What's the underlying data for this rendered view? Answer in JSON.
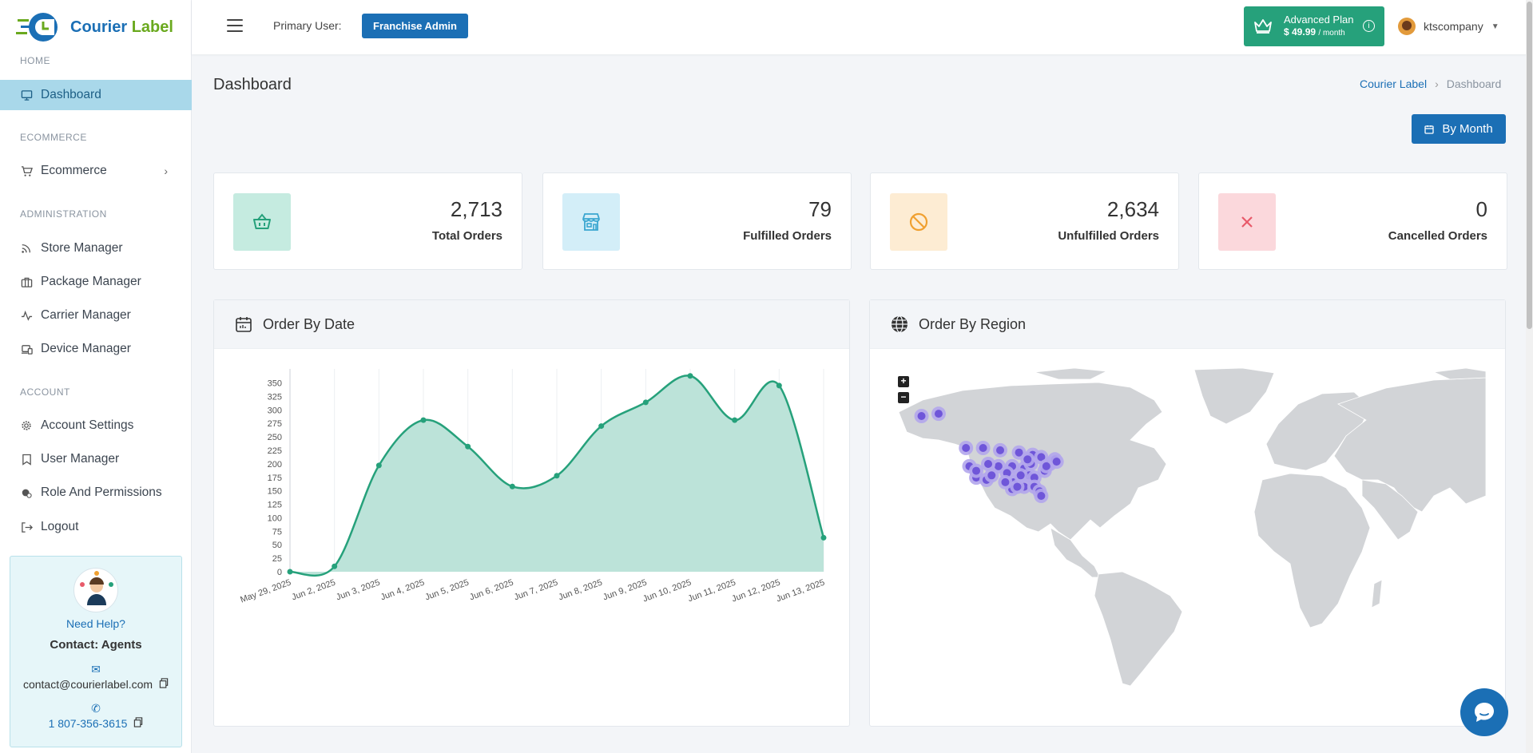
{
  "brand": {
    "name_part1": "Courier",
    "name_part2": "Label"
  },
  "sidebar": {
    "sections": [
      {
        "label": "HOME"
      },
      {
        "label": "ECOMMERCE"
      },
      {
        "label": "ADMINISTRATION"
      },
      {
        "label": "ACCOUNT"
      }
    ],
    "items": [
      {
        "label": "Dashboard",
        "icon": "monitor-icon",
        "active": true
      },
      {
        "label": "Ecommerce",
        "icon": "cart-icon"
      },
      {
        "label": "Store Manager",
        "icon": "rss-icon"
      },
      {
        "label": "Package Manager",
        "icon": "briefcase-icon"
      },
      {
        "label": "Carrier Manager",
        "icon": "activity-icon"
      },
      {
        "label": "Device Manager",
        "icon": "devices-icon"
      },
      {
        "label": "Account Settings",
        "icon": "gear-icon"
      },
      {
        "label": "User Manager",
        "icon": "bookmark-icon"
      },
      {
        "label": "Role And Permissions",
        "icon": "shield-icon"
      },
      {
        "label": "Logout",
        "icon": "logout-icon"
      }
    ],
    "help": {
      "title": "Need Help?",
      "contact": "Contact: Agents",
      "email": "contact@courierlabel.com",
      "phone": "1 807-356-3615"
    }
  },
  "topbar": {
    "primary_user_label": "Primary User:",
    "primary_user_role": "Franchise Admin",
    "plan_name": "Advanced Plan",
    "plan_price": "$ 49.99",
    "plan_period": "/ month",
    "username": "ktscompany"
  },
  "page": {
    "title": "Dashboard",
    "breadcrumb": [
      "Courier Label",
      "Dashboard"
    ],
    "period_button": "By Month"
  },
  "stats": [
    {
      "value": "2,713",
      "label": "Total Orders",
      "icon": "basket-icon",
      "color": "#26a17b",
      "bg": "#c5ebe0"
    },
    {
      "value": "79",
      "label": "Fulfilled Orders",
      "icon": "store-icon",
      "color": "#3aa6d0",
      "bg": "#d3eef8"
    },
    {
      "value": "2,634",
      "label": "Unfulfilled Orders",
      "icon": "ban-icon",
      "color": "#f0a030",
      "bg": "#fdecd3"
    },
    {
      "value": "0",
      "label": "Cancelled Orders",
      "icon": "x-icon",
      "color": "#e85a6a",
      "bg": "#fbd8dc"
    }
  ],
  "panels": {
    "order_by_date": "Order By Date",
    "order_by_region": "Order By Region"
  },
  "chart_data": {
    "type": "area",
    "x": [
      "May 29, 2025",
      "Jun 2, 2025",
      "Jun 3, 2025",
      "Jun 4, 2025",
      "Jun 5, 2025",
      "Jun 6, 2025",
      "Jun 7, 2025",
      "Jun 8, 2025",
      "Jun 9, 2025",
      "Jun 10, 2025",
      "Jun 11, 2025",
      "Jun 12, 2025",
      "Jun 13, 2025"
    ],
    "series": [
      {
        "values": [
          0,
          10,
          197,
          281,
          232,
          158,
          178,
          270,
          314,
          363,
          281,
          345,
          63
        ]
      }
    ],
    "yticks": [
      0,
      25,
      50,
      75,
      100,
      125,
      150,
      175,
      200,
      225,
      250,
      275,
      300,
      325,
      350
    ],
    "ylim": [
      0,
      370
    ],
    "grid": true,
    "colors": {
      "line": "#26a17b",
      "fill": "#b8e2d7"
    }
  },
  "map_points": [
    [
      -150,
      61
    ],
    [
      -140,
      62
    ],
    [
      -124,
      47
    ],
    [
      -114,
      47
    ],
    [
      -104,
      46
    ],
    [
      -93,
      45
    ],
    [
      -85,
      44
    ],
    [
      -80,
      43
    ],
    [
      -122,
      39
    ],
    [
      -118,
      34
    ],
    [
      -112,
      33
    ],
    [
      -105,
      39
    ],
    [
      -97,
      39
    ],
    [
      -90,
      38
    ],
    [
      -87,
      35
    ],
    [
      -84,
      34
    ],
    [
      -78,
      37
    ],
    [
      -75,
      40
    ],
    [
      -72,
      42
    ],
    [
      -71,
      41
    ],
    [
      -96,
      32
    ],
    [
      -97,
      29
    ],
    [
      -90,
      30
    ],
    [
      -84,
      30
    ],
    [
      -81,
      28
    ],
    [
      -111,
      40
    ],
    [
      -100,
      36
    ],
    [
      -92,
      35
    ],
    [
      -118,
      37
    ],
    [
      -109,
      35
    ],
    [
      -86,
      40
    ],
    [
      -80,
      26
    ],
    [
      -77,
      39
    ],
    [
      -94,
      30
    ],
    [
      -88,
      42
    ],
    [
      -101,
      32
    ]
  ]
}
